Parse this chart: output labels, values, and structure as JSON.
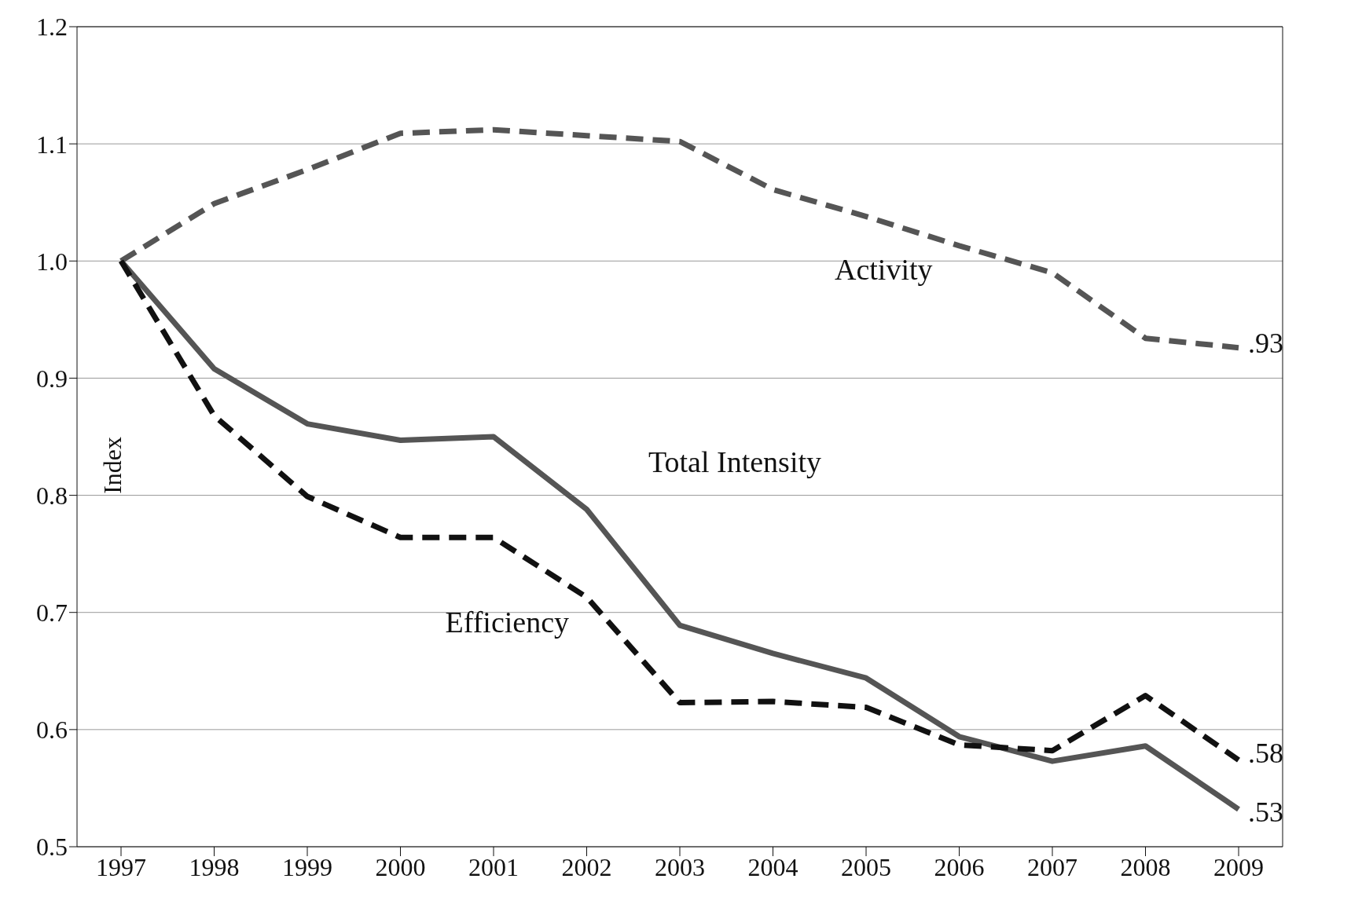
{
  "chart_data": {
    "type": "line",
    "ylabel": "Index",
    "categories": [
      "1997",
      "1998",
      "1999",
      "2000",
      "2001",
      "2002",
      "2003",
      "2004",
      "2005",
      "2006",
      "2007",
      "2008",
      "2009"
    ],
    "series": [
      {
        "name": "Activity",
        "color": "#555555",
        "line_style": "dashed",
        "values": [
          1.0,
          1.049,
          1.078,
          1.109,
          1.112,
          1.107,
          1.102,
          1.061,
          1.038,
          1.013,
          0.99,
          0.934,
          0.926
        ]
      },
      {
        "name": "Total Intensity",
        "color": "#555555",
        "line_style": "solid",
        "values": [
          1.0,
          0.908,
          0.861,
          0.847,
          0.85,
          0.788,
          0.689,
          0.665,
          0.644,
          0.594,
          0.573,
          0.586,
          0.532
        ]
      },
      {
        "name": "Efficiency",
        "color": "#111111",
        "line_style": "dashed",
        "values": [
          1.0,
          0.868,
          0.799,
          0.764,
          0.764,
          0.713,
          0.623,
          0.624,
          0.619,
          0.587,
          0.582,
          0.629,
          0.574
        ]
      }
    ],
    "ylim": [
      0.5,
      1.2
    ],
    "yticks": [
      {
        "value": 0.5,
        "label": "0.5"
      },
      {
        "value": 0.6,
        "label": "0.6"
      },
      {
        "value": 0.7,
        "label": "0.7"
      },
      {
        "value": 0.8,
        "label": "0.8"
      },
      {
        "value": 0.9,
        "label": "0.9"
      },
      {
        "value": 1.0,
        "label": "1.0"
      },
      {
        "value": 1.1,
        "label": "1.1"
      },
      {
        "value": 1.2,
        "label": "1.2"
      }
    ],
    "grid": "y",
    "legend": false,
    "marker": "none",
    "annotations": [
      {
        "text": ".93",
        "x": "2009",
        "y": 0.93
      },
      {
        "text": ".58",
        "x": "2009",
        "y": 0.58
      },
      {
        "text": ".53",
        "x": "2009",
        "y": 0.53
      }
    ]
  }
}
